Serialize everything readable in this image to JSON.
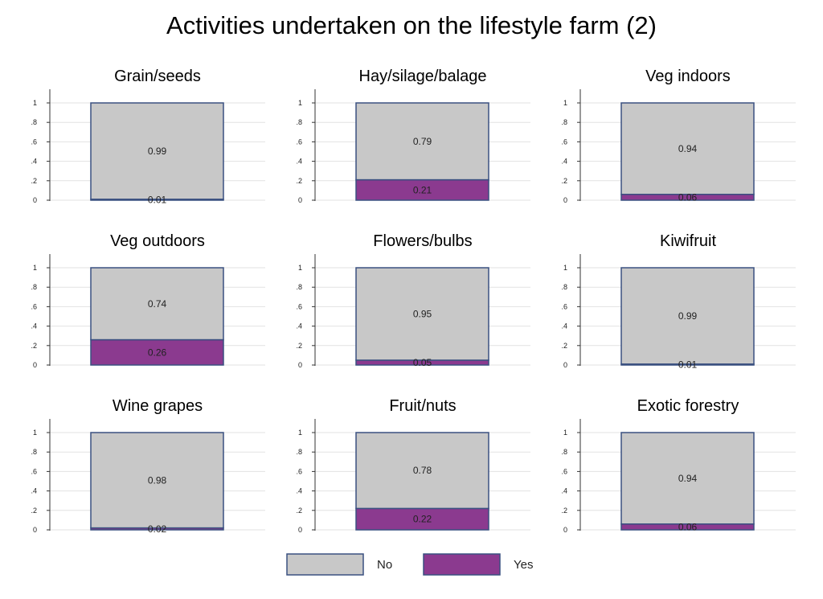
{
  "chart_data": {
    "type": "bar",
    "stacked": true,
    "title": "Activities undertaken on the lifestyle farm (2)",
    "ylim": [
      0,
      1
    ],
    "yticks": [
      "0",
      ".2",
      ".4",
      ".6",
      ".8",
      "1"
    ],
    "ytick_values": [
      0,
      0.2,
      0.4,
      0.6,
      0.8,
      1
    ],
    "grid": true,
    "legend_position": "bottom",
    "colors": {
      "No": "#c8c8c8",
      "Yes": "#8b3a8f",
      "outline": "#3a5080",
      "grid": "#e2e2e2"
    },
    "legend": [
      {
        "key": "No",
        "label": "No"
      },
      {
        "key": "Yes",
        "label": "Yes"
      }
    ],
    "panels": [
      {
        "title": "Grain/seeds",
        "no": 0.99,
        "yes": 0.01,
        "no_label": "0.99",
        "yes_label": "0.01"
      },
      {
        "title": "Hay/silage/balage",
        "no": 0.79,
        "yes": 0.21,
        "no_label": "0.79",
        "yes_label": "0.21"
      },
      {
        "title": "Veg indoors",
        "no": 0.94,
        "yes": 0.06,
        "no_label": "0.94",
        "yes_label": "0.06"
      },
      {
        "title": "Veg outdoors",
        "no": 0.74,
        "yes": 0.26,
        "no_label": "0.74",
        "yes_label": "0.26"
      },
      {
        "title": "Flowers/bulbs",
        "no": 0.95,
        "yes": 0.05,
        "no_label": "0.95",
        "yes_label": "0.05"
      },
      {
        "title": "Kiwifruit",
        "no": 0.99,
        "yes": 0.01,
        "no_label": "0.99",
        "yes_label": "0.01"
      },
      {
        "title": "Wine grapes",
        "no": 0.98,
        "yes": 0.02,
        "no_label": "0.98",
        "yes_label": "0.02"
      },
      {
        "title": "Fruit/nuts",
        "no": 0.78,
        "yes": 0.22,
        "no_label": "0.78",
        "yes_label": "0.22"
      },
      {
        "title": "Exotic forestry",
        "no": 0.94,
        "yes": 0.06,
        "no_label": "0.94",
        "yes_label": "0.06"
      }
    ]
  }
}
